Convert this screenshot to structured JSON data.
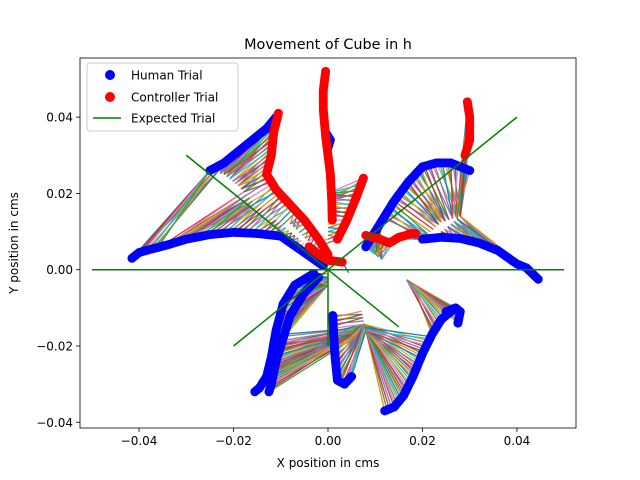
{
  "chart_data": {
    "type": "scatter",
    "title": "Movement of Cube in h",
    "xlabel": "X position in cms",
    "ylabel": "Y position in cms",
    "xlim": [
      -0.0525,
      0.0525
    ],
    "ylim": [
      -0.0415,
      0.0555
    ],
    "xticks": [
      -0.04,
      -0.02,
      0.0,
      0.02,
      0.04
    ],
    "xtick_labels": [
      "−0.04",
      "−0.02",
      "0.00",
      "0.02",
      "0.04"
    ],
    "yticks": [
      -0.04,
      -0.02,
      0.0,
      0.02,
      0.04
    ],
    "ytick_labels": [
      "−0.04",
      "−0.02",
      "0.00",
      "0.02",
      "0.04"
    ],
    "grid": false,
    "legend": {
      "placement": "upper-left",
      "entries": [
        "Human Trial",
        "Controller Trial",
        "Expected Trial"
      ]
    },
    "colors": {
      "human": "#0000ff",
      "controller": "#ff0000",
      "expected": "#008000"
    },
    "series": [
      {
        "name": "Human Trial",
        "kind": "scatter",
        "paths": [
          [
            [
              -0.0415,
              0.003
            ],
            [
              -0.04,
              0.0045
            ],
            [
              -0.038,
              0.0052
            ],
            [
              -0.034,
              0.0065
            ],
            [
              -0.03,
              0.008
            ],
            [
              -0.025,
              0.0092
            ],
            [
              -0.02,
              0.0098
            ],
            [
              -0.015,
              0.0095
            ],
            [
              -0.01,
              0.0088
            ],
            [
              -0.005,
              0.0045
            ],
            [
              -0.001,
              0.001
            ]
          ],
          [
            [
              -0.025,
              0.026
            ],
            [
              -0.022,
              0.028
            ],
            [
              -0.019,
              0.031
            ],
            [
              -0.016,
              0.034
            ],
            [
              -0.013,
              0.037
            ],
            [
              -0.011,
              0.04
            ]
          ],
          [
            [
              -0.0155,
              -0.032
            ],
            [
              -0.0145,
              -0.031
            ],
            [
              -0.013,
              -0.028
            ],
            [
              -0.012,
              -0.023
            ],
            [
              -0.011,
              -0.016
            ],
            [
              -0.0095,
              -0.009
            ],
            [
              -0.007,
              -0.004
            ],
            [
              -0.003,
              -0.001
            ]
          ],
          [
            [
              -0.0125,
              -0.032
            ],
            [
              -0.012,
              -0.03
            ],
            [
              -0.011,
              -0.024
            ],
            [
              -0.0095,
              -0.018
            ],
            [
              -0.008,
              -0.012
            ],
            [
              -0.005,
              -0.006
            ],
            [
              -0.002,
              -0.002
            ]
          ],
          [
            [
              -0.0005,
              0.036
            ],
            [
              0.0005,
              0.034
            ],
            [
              0.0,
              0.032
            ]
          ],
          [
            [
              0.001,
              -0.012
            ],
            [
              0.0012,
              -0.017
            ],
            [
              0.0015,
              -0.023
            ],
            [
              0.002,
              -0.029
            ],
            [
              0.0035,
              -0.03
            ],
            [
              0.005,
              -0.028
            ]
          ],
          [
            [
              0.012,
              -0.037
            ],
            [
              0.014,
              -0.036
            ],
            [
              0.016,
              -0.033
            ],
            [
              0.018,
              -0.028
            ],
            [
              0.02,
              -0.022
            ],
            [
              0.022,
              -0.017
            ],
            [
              0.024,
              -0.013
            ],
            [
              0.026,
              -0.011
            ]
          ],
          [
            [
              0.025,
              -0.011
            ],
            [
              0.027,
              -0.01
            ],
            [
              0.028,
              -0.011
            ],
            [
              0.0275,
              -0.014
            ]
          ],
          [
            [
              0.008,
              0.006
            ],
            [
              0.011,
              0.012
            ],
            [
              0.014,
              0.018
            ],
            [
              0.017,
              0.023
            ],
            [
              0.02,
              0.027
            ],
            [
              0.023,
              0.028
            ],
            [
              0.026,
              0.028
            ],
            [
              0.028,
              0.027
            ],
            [
              0.03,
              0.026
            ]
          ],
          [
            [
              0.02,
              0.008
            ],
            [
              0.024,
              0.0085
            ],
            [
              0.028,
              0.0082
            ],
            [
              0.032,
              0.007
            ],
            [
              0.036,
              0.005
            ],
            [
              0.04,
              0.0015
            ],
            [
              0.042,
              0.0005
            ],
            [
              0.0445,
              -0.0025
            ]
          ]
        ]
      },
      {
        "name": "Controller Trial",
        "kind": "scatter",
        "paths": [
          [
            [
              -0.0105,
              0.041
            ],
            [
              -0.0115,
              0.036
            ],
            [
              -0.012,
              0.03
            ],
            [
              -0.013,
              0.025
            ],
            [
              -0.011,
              0.021
            ],
            [
              -0.008,
              0.017
            ],
            [
              -0.005,
              0.013
            ],
            [
              -0.002,
              0.008
            ],
            [
              0.0,
              0.004
            ]
          ],
          [
            [
              -0.0005,
              0.052
            ],
            [
              -0.001,
              0.047
            ],
            [
              -0.001,
              0.042
            ],
            [
              -0.0005,
              0.035
            ],
            [
              0.0,
              0.03
            ],
            [
              0.0005,
              0.025
            ],
            [
              0.0008,
              0.018
            ],
            [
              0.0009,
              0.013
            ]
          ],
          [
            [
              0.0075,
              0.024
            ],
            [
              0.006,
              0.019
            ],
            [
              0.004,
              0.013
            ],
            [
              0.002,
              0.008
            ]
          ],
          [
            [
              0.008,
              0.009
            ],
            [
              0.011,
              0.008
            ],
            [
              0.013,
              0.007
            ],
            [
              0.015,
              0.0085
            ],
            [
              0.0165,
              0.009
            ],
            [
              0.0175,
              0.0095
            ],
            [
              0.0185,
              0.0095
            ]
          ],
          [
            [
              0.0295,
              0.044
            ],
            [
              0.03,
              0.04
            ],
            [
              0.03,
              0.034
            ],
            [
              0.029,
              0.03
            ]
          ],
          [
            [
              -0.004,
              0.006
            ],
            [
              -0.002,
              0.004
            ],
            [
              0.0,
              0.0025
            ],
            [
              0.003,
              0.002
            ]
          ]
        ]
      },
      {
        "name": "Expected Trial",
        "kind": "line",
        "segments": [
          [
            [
              -0.05,
              0.0
            ],
            [
              0.05,
              0.0
            ]
          ],
          [
            [
              -0.02,
              -0.02
            ],
            [
              0.04,
              0.04
            ]
          ],
          [
            [
              -0.03,
              0.03
            ],
            [
              0.015,
              -0.015
            ]
          ],
          [
            [
              0.0,
              0.0
            ],
            [
              0.0,
              -0.02
            ]
          ]
        ]
      }
    ],
    "connectors": {
      "anchors": [
        [
          [
            -0.025,
            0.026
          ],
          [
            -0.022,
            0.025
          ],
          [
            -0.019,
            0.022
          ],
          [
            -0.016,
            0.018
          ],
          [
            -0.013,
            0.015
          ],
          [
            -0.009,
            0.011
          ],
          [
            -0.005,
            0.007
          ],
          [
            -0.002,
            0.003
          ]
        ],
        [
          [
            -0.008,
            0.012
          ],
          [
            -0.003,
            0.006
          ],
          [
            0.0,
            0.004
          ]
        ],
        [
          [
            0.0,
            0.02
          ],
          [
            0.0,
            0.012
          ],
          [
            0.0,
            0.006
          ],
          [
            0.0,
            0.0
          ],
          [
            0.0,
            -0.004
          ]
        ],
        [
          [
            0.004,
            0.0
          ],
          [
            0.006,
            -0.004
          ],
          [
            0.007,
            -0.01
          ],
          [
            0.008,
            -0.016
          ]
        ],
        [
          [
            0.01,
            0.004
          ],
          [
            0.012,
            0.002
          ],
          [
            0.014,
            0.0
          ],
          [
            0.016,
            -0.002
          ],
          [
            0.018,
            -0.004
          ]
        ],
        [
          [
            0.02,
            0.008
          ],
          [
            0.024,
            0.0125
          ],
          [
            0.028,
            0.014
          ],
          [
            0.022,
            0.008
          ]
        ]
      ],
      "palette": [
        "#1f77b4",
        "#ff7f0e",
        "#2ca02c",
        "#d62728",
        "#9467bd",
        "#8c564b",
        "#e377c2",
        "#7f7f7f",
        "#bcbd22",
        "#17becf"
      ]
    }
  }
}
